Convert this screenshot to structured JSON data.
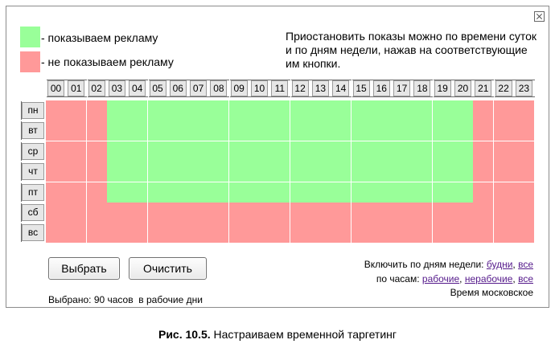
{
  "legend": {
    "show_label": "- показываем рекламу",
    "hide_label": "- не показываем рекламу",
    "show_color": "#99ff99",
    "hide_color": "#ff9999"
  },
  "hint": "Приостановить показы можно по времени суток и по дням недели, нажав на соответствующие им кнопки.",
  "hours": [
    "00",
    "01",
    "02",
    "03",
    "04",
    "05",
    "06",
    "07",
    "08",
    "09",
    "10",
    "11",
    "12",
    "13",
    "14",
    "15",
    "16",
    "17",
    "18",
    "19",
    "20",
    "21",
    "22",
    "23"
  ],
  "days": [
    "пн",
    "вт",
    "ср",
    "чт",
    "пт",
    "сб",
    "вс"
  ],
  "schedule": [
    [
      0,
      0,
      0,
      1,
      1,
      1,
      1,
      1,
      1,
      1,
      1,
      1,
      1,
      1,
      1,
      1,
      1,
      1,
      1,
      1,
      1,
      0,
      0,
      0
    ],
    [
      0,
      0,
      0,
      1,
      1,
      1,
      1,
      1,
      1,
      1,
      1,
      1,
      1,
      1,
      1,
      1,
      1,
      1,
      1,
      1,
      1,
      0,
      0,
      0
    ],
    [
      0,
      0,
      0,
      1,
      1,
      1,
      1,
      1,
      1,
      1,
      1,
      1,
      1,
      1,
      1,
      1,
      1,
      1,
      1,
      1,
      1,
      0,
      0,
      0
    ],
    [
      0,
      0,
      0,
      1,
      1,
      1,
      1,
      1,
      1,
      1,
      1,
      1,
      1,
      1,
      1,
      1,
      1,
      1,
      1,
      1,
      1,
      0,
      0,
      0
    ],
    [
      0,
      0,
      0,
      1,
      1,
      1,
      1,
      1,
      1,
      1,
      1,
      1,
      1,
      1,
      1,
      1,
      1,
      1,
      1,
      1,
      1,
      0,
      0,
      0
    ],
    [
      0,
      0,
      0,
      0,
      0,
      0,
      0,
      0,
      0,
      0,
      0,
      0,
      0,
      0,
      0,
      0,
      0,
      0,
      0,
      0,
      0,
      0,
      0,
      0
    ],
    [
      0,
      0,
      0,
      0,
      0,
      0,
      0,
      0,
      0,
      0,
      0,
      0,
      0,
      0,
      0,
      0,
      0,
      0,
      0,
      0,
      0,
      0,
      0,
      0
    ]
  ],
  "buttons": {
    "select": "Выбрать",
    "clear": "Очистить"
  },
  "selection_info": "Выбрано: 90 часов  в рабочие дни",
  "by_days": {
    "label": "Включить по дням недели:",
    "weekdays": "будни",
    "all": "все"
  },
  "by_hours": {
    "label": "по часам:",
    "working": "рабочие",
    "nonworking": "нерабочие",
    "all": "все"
  },
  "timezone": "Время московское",
  "caption": {
    "prefix": "Рис. 10.5.",
    "text": " Настраиваем временной таргетинг"
  }
}
